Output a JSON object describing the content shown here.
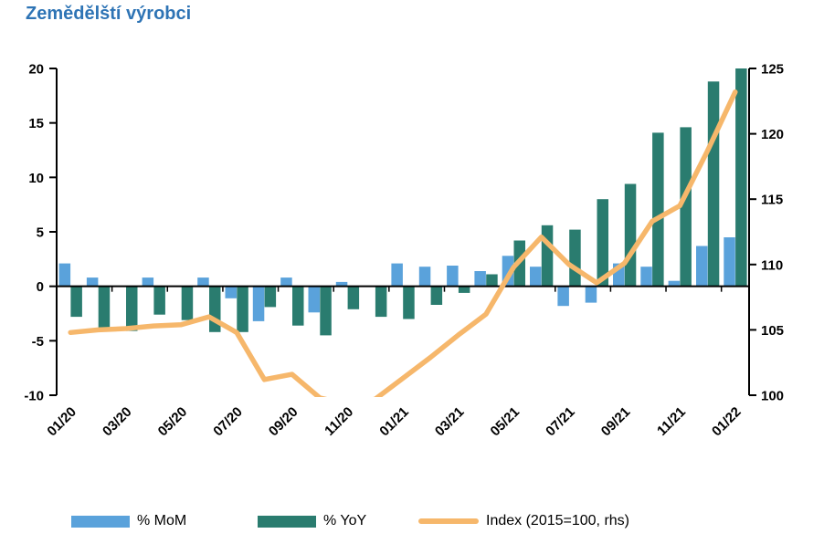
{
  "title": "Zemědělští výrobci",
  "title_color": "#2E74B5",
  "legend": [
    {
      "label": "% MoM",
      "type": "bar",
      "color": "#5AA2DB"
    },
    {
      "label": "% YoY",
      "type": "bar",
      "color": "#2A7C6F"
    },
    {
      "label": "Index (2015=100, rhs)",
      "type": "line",
      "color": "#F6B76B"
    }
  ],
  "chart_data": {
    "type": "combo",
    "x": [
      "01/20",
      "02/20",
      "03/20",
      "04/20",
      "05/20",
      "06/20",
      "07/20",
      "08/20",
      "09/20",
      "10/20",
      "11/20",
      "12/20",
      "01/21",
      "02/21",
      "03/21",
      "04/21",
      "05/21",
      "06/21",
      "07/21",
      "08/21",
      "09/21",
      "10/21",
      "11/21",
      "12/21",
      "01/22"
    ],
    "x_tick_labels": [
      "01/20",
      "03/20",
      "05/20",
      "07/20",
      "09/20",
      "11/20",
      "01/21",
      "03/21",
      "05/21",
      "07/21",
      "09/21",
      "11/21",
      "01/22"
    ],
    "series": [
      {
        "name": "% MoM",
        "type": "bar",
        "axis": "left",
        "color": "#5AA2DB",
        "values": [
          2.1,
          0.8,
          0.0,
          0.8,
          0.0,
          0.8,
          -1.1,
          -3.2,
          0.8,
          -2.4,
          0.4,
          0.0,
          2.1,
          1.8,
          1.9,
          1.4,
          2.8,
          1.8,
          -1.8,
          -1.5,
          2.1,
          1.8,
          0.5,
          3.7,
          4.5
        ]
      },
      {
        "name": "% YoY",
        "type": "bar",
        "axis": "left",
        "color": "#2A7C6F",
        "values": [
          -2.8,
          -3.9,
          -4.1,
          -2.6,
          -3.1,
          -4.2,
          -4.2,
          -1.9,
          -3.6,
          -4.5,
          -2.1,
          -2.8,
          -3.0,
          -1.7,
          -0.6,
          1.1,
          4.2,
          5.6,
          5.2,
          8.0,
          9.4,
          14.1,
          14.6,
          18.8,
          20.0
        ]
      },
      {
        "name": "Index (2015=100, rhs)",
        "type": "line",
        "axis": "right",
        "color": "#F6B76B",
        "values": [
          104.8,
          105.0,
          105.1,
          105.3,
          105.4,
          106.0,
          104.8,
          101.2,
          101.6,
          99.8,
          99.3,
          99.7,
          101.3,
          102.9,
          104.6,
          106.2,
          109.8,
          112.1,
          110.0,
          108.6,
          110.1,
          113.3,
          114.5,
          118.7,
          123.2
        ]
      }
    ],
    "left_axis": {
      "min": -10,
      "max": 20,
      "ticks": [
        20,
        15,
        10,
        5,
        0,
        -5,
        -10
      ]
    },
    "right_axis": {
      "min": 100,
      "max": 125,
      "ticks": [
        125,
        120,
        115,
        110,
        105,
        100
      ]
    },
    "grid": false,
    "legend_position": "bottom",
    "note": "Index line is clipped below right-axis minimum of 100 during 10/20-12/20"
  }
}
